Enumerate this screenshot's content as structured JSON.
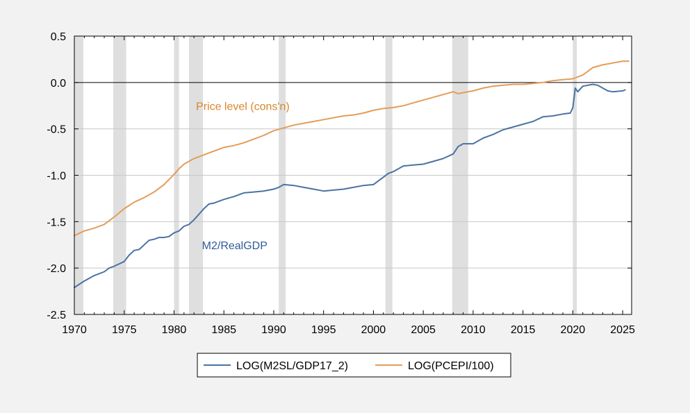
{
  "chart_data": {
    "type": "line",
    "title": "",
    "xlabel": "",
    "ylabel": "",
    "xlim": [
      1970,
      2025.9
    ],
    "ylim": [
      -2.5,
      0.5
    ],
    "x_ticks": [
      1970,
      1975,
      1980,
      1985,
      1990,
      1995,
      2000,
      2005,
      2010,
      2015,
      2020,
      2025
    ],
    "x_tick_labels": [
      "1970",
      "1975",
      "1980",
      "1985",
      "1990",
      "1995",
      "2000",
      "2005",
      "2010",
      "2015",
      "2020",
      "2025"
    ],
    "y_ticks": [
      0.5,
      0.0,
      -0.5,
      -1.0,
      -1.5,
      -2.0,
      -2.5
    ],
    "y_tick_labels": [
      "0.5",
      "0.0",
      "-0.5",
      "-1.0",
      "-1.5",
      "-2.0",
      "-2.5"
    ],
    "grid": "horizontal",
    "zero_line": true,
    "recessions": [
      [
        1970.0,
        1970.9
      ],
      [
        1973.9,
        1975.2
      ],
      [
        1980.0,
        1980.5
      ],
      [
        1981.5,
        1982.9
      ],
      [
        1990.5,
        1991.2
      ],
      [
        2001.2,
        2001.9
      ],
      [
        2007.9,
        2009.5
      ],
      [
        2020.0,
        2020.4
      ]
    ],
    "recession_color": "#dfdfdf",
    "legend_position": "bottom",
    "series": [
      {
        "name": "LOG(M2SL/GDP17_2)",
        "color": "#4a72a2",
        "x": [
          1970,
          1971,
          1972,
          1973,
          1973.5,
          1974,
          1975,
          1975.5,
          1976,
          1976.5,
          1977,
          1977.5,
          1978,
          1978.5,
          1979,
          1979.5,
          1980,
          1980.5,
          1981,
          1981.5,
          1982,
          1982.5,
          1983,
          1983.5,
          1984,
          1985,
          1986,
          1987,
          1988,
          1989,
          1990,
          1990.5,
          1991,
          1992,
          1993,
          1994,
          1995,
          1996,
          1997,
          1998,
          1999,
          2000,
          2001,
          2001.5,
          2002,
          2003,
          2004,
          2005,
          2006,
          2007,
          2008,
          2008.5,
          2009,
          2010,
          2011,
          2012,
          2013,
          2014,
          2015,
          2016,
          2017,
          2018,
          2019,
          2019.75,
          2020,
          2020.25,
          2020.5,
          2021,
          2022,
          2022.5,
          2023,
          2023.5,
          2024,
          2025,
          2025.25
        ],
        "values": [
          -2.21,
          -2.14,
          -2.08,
          -2.04,
          -2.0,
          -1.98,
          -1.93,
          -1.86,
          -1.81,
          -1.8,
          -1.75,
          -1.7,
          -1.69,
          -1.67,
          -1.67,
          -1.66,
          -1.62,
          -1.6,
          -1.55,
          -1.53,
          -1.48,
          -1.42,
          -1.36,
          -1.31,
          -1.3,
          -1.26,
          -1.23,
          -1.19,
          -1.18,
          -1.17,
          -1.15,
          -1.13,
          -1.1,
          -1.11,
          -1.13,
          -1.15,
          -1.17,
          -1.16,
          -1.15,
          -1.13,
          -1.11,
          -1.1,
          -1.02,
          -0.98,
          -0.96,
          -0.9,
          -0.89,
          -0.88,
          -0.85,
          -0.82,
          -0.77,
          -0.69,
          -0.66,
          -0.66,
          -0.6,
          -0.56,
          -0.51,
          -0.48,
          -0.45,
          -0.42,
          -0.37,
          -0.36,
          -0.34,
          -0.33,
          -0.27,
          -0.06,
          -0.1,
          -0.04,
          -0.02,
          -0.03,
          -0.06,
          -0.09,
          -0.1,
          -0.09,
          -0.08
        ]
      },
      {
        "name": "LOG(PCEPI/100)",
        "color": "#e49c5a",
        "x": [
          1970,
          1971,
          1972,
          1973,
          1974,
          1975,
          1976,
          1977,
          1978,
          1979,
          1980,
          1980.5,
          1981,
          1982,
          1983,
          1984,
          1985,
          1986,
          1987,
          1988,
          1989,
          1990,
          1991,
          1992,
          1993,
          1994,
          1995,
          1996,
          1997,
          1998,
          1999,
          2000,
          2001,
          2002,
          2003,
          2004,
          2005,
          2006,
          2007,
          2008,
          2008.5,
          2009,
          2010,
          2011,
          2012,
          2013,
          2014,
          2015,
          2016,
          2017,
          2018,
          2019,
          2020,
          2021,
          2021.5,
          2022,
          2023,
          2024,
          2025,
          2025.6
        ],
        "values": [
          -1.65,
          -1.6,
          -1.57,
          -1.53,
          -1.45,
          -1.36,
          -1.29,
          -1.24,
          -1.18,
          -1.1,
          -0.99,
          -0.93,
          -0.88,
          -0.82,
          -0.78,
          -0.74,
          -0.7,
          -0.68,
          -0.65,
          -0.61,
          -0.57,
          -0.52,
          -0.49,
          -0.46,
          -0.44,
          -0.42,
          -0.4,
          -0.38,
          -0.36,
          -0.35,
          -0.33,
          -0.3,
          -0.28,
          -0.27,
          -0.25,
          -0.22,
          -0.19,
          -0.16,
          -0.13,
          -0.1,
          -0.12,
          -0.11,
          -0.09,
          -0.06,
          -0.04,
          -0.03,
          -0.02,
          -0.02,
          -0.01,
          0.0,
          0.02,
          0.03,
          0.04,
          0.08,
          0.12,
          0.16,
          0.19,
          0.21,
          0.23,
          0.23
        ]
      }
    ],
    "annotations": [
      {
        "text": "Price level (cons'n)",
        "x": 1982.2,
        "y": -0.25,
        "color": "#d9862c"
      },
      {
        "text": "M2/RealGDP",
        "x": 1982.8,
        "y": -1.75,
        "color": "#2f5b9a"
      }
    ]
  }
}
